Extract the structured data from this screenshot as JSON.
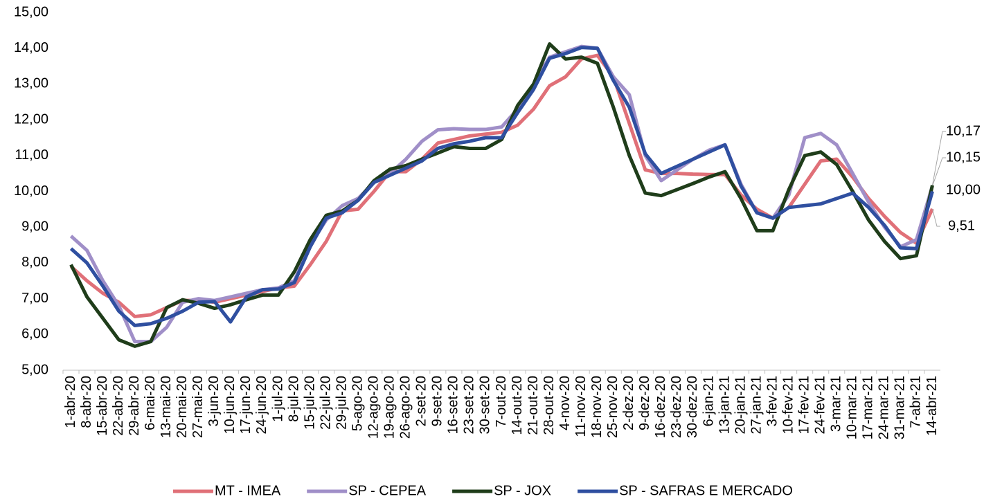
{
  "chart_data": {
    "type": "line",
    "categories": [
      "1-abr-20",
      "8-abr-20",
      "15-abr-20",
      "22-abr-20",
      "29-abr-20",
      "6-mai-20",
      "13-mai-20",
      "20-mai-20",
      "27-mai-20",
      "3-jun-20",
      "10-jun-20",
      "17-jun-20",
      "24-jun-20",
      "1-jul-20",
      "8-jul-20",
      "15-jul-20",
      "22-jul-20",
      "29-jul-20",
      "5-ago-20",
      "12-ago-20",
      "19-ago-20",
      "26-ago-20",
      "2-set-20",
      "9-set-20",
      "16-set-20",
      "23-set-20",
      "30-set-20",
      "7-out-20",
      "14-out-20",
      "21-out-20",
      "28-out-20",
      "4-nov-20",
      "11-nov-20",
      "18-nov-20",
      "25-nov-20",
      "2-dez-20",
      "9-dez-20",
      "16-dez-20",
      "23-dez-20",
      "30-dez-20",
      "6-jan-21",
      "13-jan-21",
      "20-jan-21",
      "27-jan-21",
      "3-fev-21",
      "10-fev-21",
      "17-fev-21",
      "24-fev-21",
      "3-mar-21",
      "10-mar-21",
      "17-mar-21",
      "24-mar-21",
      "31-mar-21",
      "7-abr-21",
      "14-abr-21"
    ],
    "series": [
      {
        "name": "MT - IMEA",
        "color": "#e07078",
        "values": [
          7.9,
          7.5,
          7.15,
          6.9,
          6.5,
          6.55,
          6.75,
          6.95,
          6.95,
          6.9,
          7.0,
          7.1,
          7.2,
          7.3,
          7.35,
          7.95,
          8.6,
          9.45,
          9.5,
          10.0,
          10.55,
          10.55,
          10.9,
          11.35,
          11.45,
          11.55,
          11.6,
          11.65,
          11.85,
          12.3,
          12.95,
          13.2,
          13.7,
          13.8,
          13.2,
          11.9,
          10.6,
          10.5,
          10.5,
          10.48,
          10.47,
          10.47,
          9.9,
          9.5,
          9.25,
          9.55,
          10.2,
          10.85,
          10.9,
          10.4,
          9.8,
          9.3,
          8.85,
          8.55,
          9.51
        ],
        "value_labels": [
          null,
          null,
          null,
          null,
          null,
          null,
          null,
          null,
          null,
          null,
          null,
          null,
          null,
          null,
          null,
          null,
          null,
          null,
          null,
          null,
          null,
          null,
          null,
          null,
          null,
          null,
          null,
          null,
          null,
          null,
          null,
          null,
          null,
          null,
          null,
          null,
          null,
          null,
          null,
          null,
          null,
          null,
          null,
          null,
          null,
          null,
          null,
          null,
          null,
          null,
          null,
          null,
          null,
          null,
          "9,51"
        ]
      },
      {
        "name": "SP - CEPEA",
        "color": "#a08fc8",
        "values": [
          8.75,
          8.35,
          7.5,
          6.8,
          5.8,
          5.8,
          6.2,
          6.9,
          7.0,
          6.95,
          7.05,
          7.15,
          7.25,
          7.3,
          7.5,
          8.5,
          9.2,
          9.6,
          9.8,
          10.25,
          10.5,
          10.9,
          11.4,
          11.72,
          11.75,
          11.73,
          11.73,
          11.8,
          12.3,
          13.0,
          13.75,
          13.9,
          14.05,
          14.0,
          13.2,
          12.7,
          11.0,
          10.3,
          10.6,
          10.9,
          11.15,
          11.3,
          10.2,
          9.4,
          9.25,
          9.9,
          11.5,
          11.62,
          11.3,
          10.5,
          9.7,
          9.0,
          8.45,
          8.65,
          10.15
        ],
        "value_labels": [
          null,
          null,
          null,
          null,
          null,
          null,
          null,
          null,
          null,
          null,
          null,
          null,
          null,
          null,
          null,
          null,
          null,
          null,
          null,
          null,
          null,
          null,
          null,
          null,
          null,
          null,
          null,
          null,
          null,
          null,
          null,
          null,
          null,
          null,
          null,
          null,
          null,
          null,
          null,
          null,
          null,
          null,
          null,
          null,
          null,
          null,
          null,
          null,
          null,
          null,
          null,
          null,
          null,
          null,
          "10,15"
        ]
      },
      {
        "name": "SP - JOX",
        "color": "#1f3d1a",
        "values": [
          7.95,
          7.05,
          6.45,
          5.85,
          5.67,
          5.8,
          6.75,
          6.97,
          6.87,
          6.73,
          6.83,
          6.97,
          7.1,
          7.1,
          7.75,
          8.65,
          9.33,
          9.45,
          9.75,
          10.3,
          10.62,
          10.72,
          10.9,
          11.07,
          11.25,
          11.2,
          11.2,
          11.45,
          12.4,
          13.0,
          14.12,
          13.7,
          13.75,
          13.58,
          12.35,
          11.0,
          9.95,
          9.88,
          10.05,
          10.22,
          10.4,
          10.55,
          9.8,
          8.9,
          8.9,
          10.05,
          11.0,
          11.1,
          10.75,
          10.0,
          9.2,
          8.6,
          8.12,
          8.2,
          10.17
        ],
        "value_labels": [
          null,
          null,
          null,
          null,
          null,
          null,
          null,
          null,
          null,
          null,
          null,
          null,
          null,
          null,
          null,
          null,
          null,
          null,
          null,
          null,
          null,
          null,
          null,
          null,
          null,
          null,
          null,
          null,
          null,
          null,
          null,
          null,
          null,
          null,
          null,
          null,
          null,
          null,
          null,
          null,
          null,
          null,
          null,
          null,
          null,
          null,
          null,
          null,
          null,
          null,
          null,
          null,
          null,
          null,
          "10,17"
        ]
      },
      {
        "name": "SP - SAFRAS E MERCADO",
        "color": "#2f4fa0",
        "values": [
          8.4,
          8.0,
          7.35,
          6.65,
          6.25,
          6.3,
          6.45,
          6.65,
          6.9,
          6.92,
          6.35,
          7.05,
          7.25,
          7.27,
          7.45,
          8.45,
          9.25,
          9.4,
          9.75,
          10.25,
          10.45,
          10.65,
          10.85,
          11.2,
          11.33,
          11.4,
          11.5,
          11.5,
          12.2,
          12.85,
          13.72,
          13.85,
          14.02,
          14.0,
          13.1,
          12.35,
          11.05,
          10.5,
          10.7,
          10.9,
          11.1,
          11.3,
          10.15,
          9.4,
          9.25,
          9.55,
          9.6,
          9.65,
          9.8,
          9.95,
          9.55,
          9.05,
          8.42,
          8.4,
          10.0
        ],
        "value_labels": [
          null,
          null,
          null,
          null,
          null,
          null,
          null,
          null,
          null,
          null,
          null,
          null,
          null,
          null,
          null,
          null,
          null,
          null,
          null,
          null,
          null,
          null,
          null,
          null,
          null,
          null,
          null,
          null,
          null,
          null,
          null,
          null,
          null,
          null,
          null,
          null,
          null,
          null,
          null,
          null,
          null,
          null,
          null,
          null,
          null,
          null,
          null,
          null,
          null,
          null,
          null,
          null,
          null,
          null,
          "10,00"
        ]
      }
    ],
    "ylim": [
      5,
      15
    ],
    "yticks": [
      {
        "value": 5,
        "label": "5,00"
      },
      {
        "value": 6,
        "label": "6,00"
      },
      {
        "value": 7,
        "label": "7,00"
      },
      {
        "value": 8,
        "label": "8,00"
      },
      {
        "value": 9,
        "label": "9,00"
      },
      {
        "value": 10,
        "label": "10,00"
      },
      {
        "value": 11,
        "label": "11,00"
      },
      {
        "value": 12,
        "label": "12,00"
      },
      {
        "value": 13,
        "label": "13,00"
      },
      {
        "value": 14,
        "label": "14,00"
      },
      {
        "value": 15,
        "label": "15,00"
      }
    ],
    "grid": false,
    "legend": "bottom"
  }
}
